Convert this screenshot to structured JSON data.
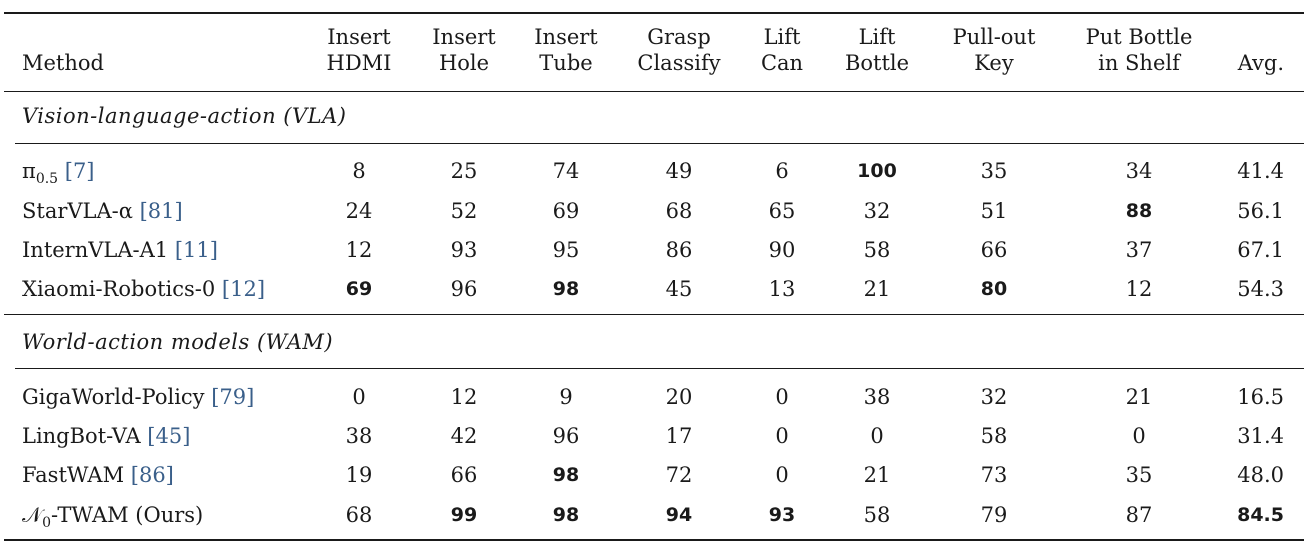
{
  "columns": {
    "method": "Method",
    "tasks": [
      [
        "Insert",
        "HDMI"
      ],
      [
        "Insert",
        "Hole"
      ],
      [
        "Insert",
        "Tube"
      ],
      [
        "Grasp",
        "Classify"
      ],
      [
        "Lift",
        "Can"
      ],
      [
        "Lift",
        "Bottle"
      ],
      [
        "Pull-out",
        "Key"
      ],
      [
        "Put Bottle",
        "in Shelf"
      ]
    ],
    "avg": "Avg."
  },
  "sections": [
    {
      "title": "Vision-language-action (VLA)",
      "rows": [
        {
          "method": "π0.5",
          "ref": "7",
          "values": [
            "8",
            "25",
            "74",
            "49",
            "6",
            "100",
            "35",
            "34"
          ],
          "avg": "41.4",
          "bold": [
            5
          ]
        },
        {
          "method": "StarVLA-α",
          "ref": "81",
          "values": [
            "24",
            "52",
            "69",
            "68",
            "65",
            "32",
            "51",
            "88"
          ],
          "avg": "56.1",
          "bold": [
            7
          ]
        },
        {
          "method": "InternVLA-A1",
          "ref": "11",
          "values": [
            "12",
            "93",
            "95",
            "86",
            "90",
            "58",
            "66",
            "37"
          ],
          "avg": "67.1",
          "bold": []
        },
        {
          "method": "Xiaomi-Robotics-0",
          "ref": "12",
          "values": [
            "69",
            "96",
            "98",
            "45",
            "13",
            "21",
            "80",
            "12"
          ],
          "avg": "54.3",
          "bold": [
            0,
            2,
            6
          ]
        }
      ]
    },
    {
      "title": "World-action models (WAM)",
      "rows": [
        {
          "method": "GigaWorld-Policy",
          "ref": "79",
          "values": [
            "0",
            "12",
            "9",
            "20",
            "0",
            "38",
            "32",
            "21"
          ],
          "avg": "16.5",
          "bold": []
        },
        {
          "method": "LingBot-VA",
          "ref": "45",
          "values": [
            "38",
            "42",
            "96",
            "17",
            "0",
            "0",
            "58",
            "0"
          ],
          "avg": "31.4",
          "bold": []
        },
        {
          "method": "FastWAM",
          "ref": "86",
          "values": [
            "19",
            "66",
            "98",
            "72",
            "0",
            "21",
            "73",
            "35"
          ],
          "avg": "48.0",
          "bold": [
            2
          ]
        },
        {
          "method": "𝒩0-TWAM (Ours)",
          "ref": "",
          "values": [
            "68",
            "99",
            "98",
            "94",
            "93",
            "58",
            "79",
            "87"
          ],
          "avg": "84.5",
          "bold": [
            1,
            2,
            3,
            4
          ],
          "avg_bold": true
        }
      ]
    }
  ]
}
